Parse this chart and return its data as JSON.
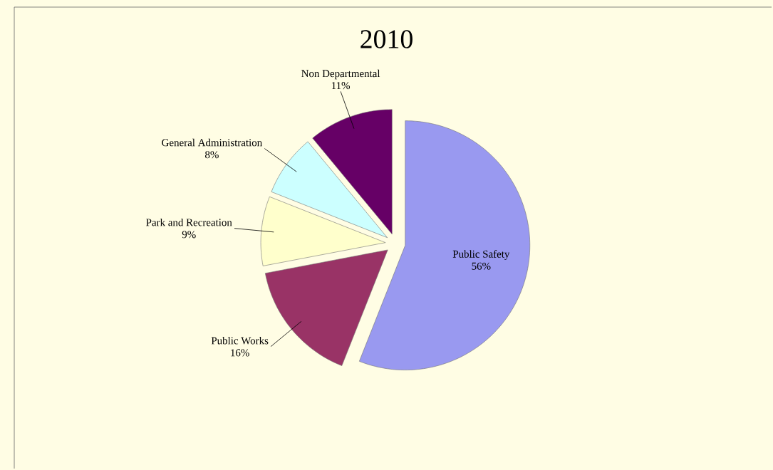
{
  "chart_data": {
    "type": "pie",
    "title": "2010",
    "categories": [
      "Public Safety",
      "Public Works",
      "Park and Recreation",
      "General Administration",
      "Non Departmental"
    ],
    "values": [
      56,
      16,
      9,
      8,
      11
    ],
    "value_labels": [
      "56%",
      "16%",
      "9%",
      "8%",
      "11%"
    ],
    "colors": [
      "#9999f0",
      "#993366",
      "#ffffcc",
      "#ccffff",
      "#660066"
    ]
  }
}
